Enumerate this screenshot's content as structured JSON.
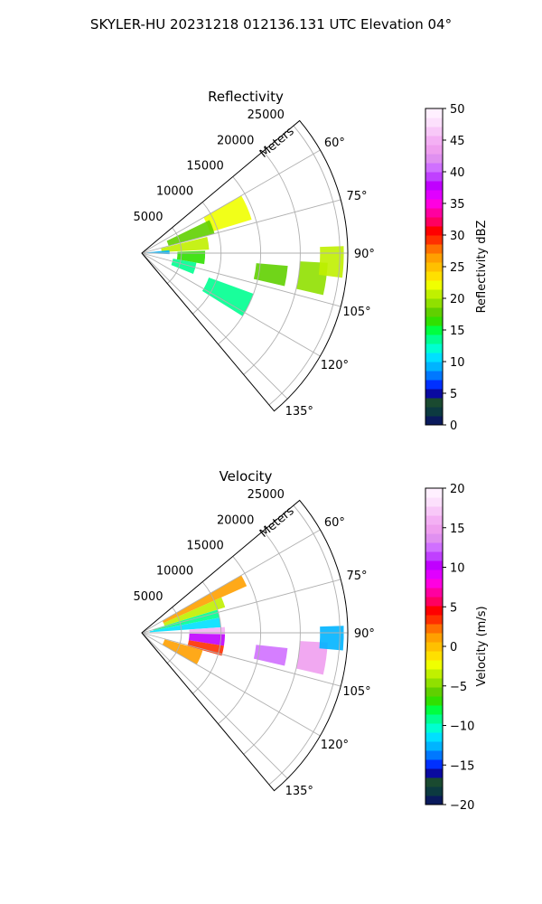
{
  "suptitle": "SKYLER-HU  20231218  012136.131 UTC Elevation 04°",
  "chart_data": [
    {
      "type": "polar-sector",
      "title": "Reflectivity",
      "range_axis_label": "Meters",
      "range_ticks": [
        "5000",
        "10000",
        "15000",
        "20000",
        "25000"
      ],
      "range_tick_values": [
        5000,
        10000,
        15000,
        20000,
        25000
      ],
      "range_max": 26000,
      "azimuth_ticks": [
        "60°",
        "75°",
        "90°",
        "105°",
        "120°",
        "135°"
      ],
      "azimuth_tick_values": [
        60,
        75,
        90,
        105,
        120,
        135
      ],
      "azimuth_range": [
        50,
        140
      ],
      "grid": true,
      "colorbar": {
        "label": "Reflectivity dBZ",
        "min": 0,
        "max": 50,
        "ticks": [
          "0",
          "5",
          "10",
          "15",
          "20",
          "25",
          "30",
          "35",
          "40",
          "45",
          "50"
        ],
        "tick_values": [
          0,
          5,
          10,
          15,
          20,
          25,
          30,
          35,
          40,
          45,
          50
        ],
        "colors": [
          "#0a1a5c",
          "#0c3a40",
          "#1a4a30",
          "#0a0aa0",
          "#0030ff",
          "#0078ff",
          "#00b4ff",
          "#00e0ff",
          "#00ffd0",
          "#00ff90",
          "#00ff40",
          "#30e000",
          "#60d000",
          "#90e000",
          "#c0f000",
          "#f0ff00",
          "#ffe000",
          "#ffc000",
          "#ffa000",
          "#ff7000",
          "#ff3000",
          "#ff0000",
          "#ff0060",
          "#ff00a0",
          "#ff00e0",
          "#e000ff",
          "#c000ff",
          "#c040ff",
          "#d070ff",
          "#e090f0",
          "#ef9fef",
          "#f4b0f4",
          "#f8c8f8",
          "#fce0fc",
          "#fff0ff"
        ]
      },
      "echoes": [
        {
          "az": [
            60,
            73
          ],
          "r": [
            9000,
            14500
          ],
          "value": 22
        },
        {
          "az": [
            64,
            75
          ],
          "r": [
            3500,
            9500
          ],
          "value": 18
        },
        {
          "az": [
            76,
            87
          ],
          "r": [
            2500,
            8500
          ],
          "value": 20
        },
        {
          "az": [
            88,
            100
          ],
          "r": [
            4500,
            8000
          ],
          "value": 17
        },
        {
          "az": [
            84,
            92
          ],
          "r": [
            500,
            3500
          ],
          "value": 9
        },
        {
          "az": [
            100,
            112
          ],
          "r": [
            4000,
            7000
          ],
          "value": 13
        },
        {
          "az": [
            95,
            103
          ],
          "r": [
            14500,
            18500
          ],
          "value": 18
        },
        {
          "az": [
            93,
            103
          ],
          "r": [
            20000,
            23500
          ],
          "value": 19
        },
        {
          "az": [
            88,
            97
          ],
          "r": [
            22500,
            25500
          ],
          "value": 20
        },
        {
          "az": [
            110,
            122
          ],
          "r": [
            9000,
            15000
          ],
          "value": 14
        }
      ]
    },
    {
      "type": "polar-sector",
      "title": "Velocity",
      "range_axis_label": "Meters",
      "range_ticks": [
        "5000",
        "10000",
        "15000",
        "20000",
        "25000"
      ],
      "range_tick_values": [
        5000,
        10000,
        15000,
        20000,
        25000
      ],
      "range_max": 26000,
      "azimuth_ticks": [
        "60°",
        "75°",
        "90°",
        "105°",
        "120°",
        "135°"
      ],
      "azimuth_tick_values": [
        60,
        75,
        90,
        105,
        120,
        135
      ],
      "azimuth_range": [
        50,
        140
      ],
      "grid": true,
      "colorbar": {
        "label": "Velocity (m/s)",
        "min": -20,
        "max": 20,
        "ticks": [
          "−20",
          "−15",
          "−10",
          "−5",
          "0",
          "5",
          "10",
          "15",
          "20"
        ],
        "tick_values": [
          -20,
          -15,
          -10,
          -5,
          0,
          5,
          10,
          15,
          20
        ],
        "colors": [
          "#0a1a5c",
          "#0c3a40",
          "#1a4a30",
          "#0a0aa0",
          "#0030ff",
          "#0078ff",
          "#00b4ff",
          "#00e0ff",
          "#00ffd0",
          "#00ff90",
          "#00ff40",
          "#30e000",
          "#60d000",
          "#90e000",
          "#c0f000",
          "#f0ff00",
          "#ffe000",
          "#ffc000",
          "#ffa000",
          "#ff7000",
          "#ff3000",
          "#ff0000",
          "#ff0060",
          "#ff00a0",
          "#ff00e0",
          "#e000ff",
          "#c000ff",
          "#c040ff",
          "#d070ff",
          "#e090f0",
          "#ef9fef",
          "#f4b0f4",
          "#f8c8f8",
          "#fce0fc",
          "#fff0ff"
        ]
      },
      "echoes": [
        {
          "az": [
            60,
            66
          ],
          "r": [
            3000,
            14500
          ],
          "value": 1
        },
        {
          "az": [
            66,
            73
          ],
          "r": [
            3000,
            11000
          ],
          "value": -3
        },
        {
          "az": [
            73,
            79
          ],
          "r": [
            1500,
            10000
          ],
          "value": -9
        },
        {
          "az": [
            79,
            86
          ],
          "r": [
            1000,
            10000
          ],
          "value": -12
        },
        {
          "az": [
            86,
            91
          ],
          "r": [
            6000,
            10500
          ],
          "value": 16
        },
        {
          "az": [
            91,
            99
          ],
          "r": [
            6000,
            10500
          ],
          "value": 10
        },
        {
          "az": [
            99,
            106
          ],
          "r": [
            6000,
            10500
          ],
          "value": 3
        },
        {
          "az": [
            106,
            120
          ],
          "r": [
            3000,
            8000
          ],
          "value": 1
        },
        {
          "az": [
            96,
            103
          ],
          "r": [
            14500,
            18500
          ],
          "value": 13
        },
        {
          "az": [
            93,
            103
          ],
          "r": [
            20000,
            23500
          ],
          "value": 15
        },
        {
          "az": [
            88,
            95
          ],
          "r": [
            22500,
            25500
          ],
          "value": -13
        }
      ]
    }
  ]
}
